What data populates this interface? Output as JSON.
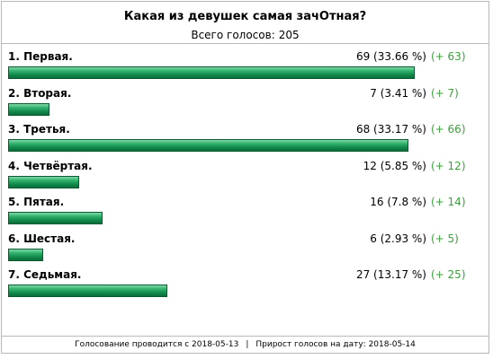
{
  "poll": {
    "title": "Какая из девушек самая зачОтная?",
    "total_label": "Всего голосов:",
    "total_votes": "205",
    "max_votes": 69,
    "options": [
      {
        "label": "1. Первая.",
        "votes": 69,
        "stat": "69 (33.66 %)",
        "delta": "(+ 63)"
      },
      {
        "label": "2. Вторая.",
        "votes": 7,
        "stat": "7 (3.41 %)",
        "delta": "(+ 7)"
      },
      {
        "label": "3. Третья.",
        "votes": 68,
        "stat": "68 (33.17 %)",
        "delta": "(+ 66)"
      },
      {
        "label": "4. Четвёртая.",
        "votes": 12,
        "stat": "12 (5.85 %)",
        "delta": "(+ 12)"
      },
      {
        "label": "5. Пятая.",
        "votes": 16,
        "stat": "16 (7.8 %)",
        "delta": "(+ 14)"
      },
      {
        "label": "6. Шестая.",
        "votes": 6,
        "stat": "6 (2.93 %)",
        "delta": "(+ 5)"
      },
      {
        "label": "7. Седьмая.",
        "votes": 27,
        "stat": "27 (13.17 %)",
        "delta": "(+ 25)"
      }
    ]
  },
  "footer": {
    "started": "Голосование проводится с 2018-05-13",
    "separator": "|",
    "growth": "Прирост голосов на дату: 2018-05-14"
  },
  "colors": {
    "bar": "#11884a",
    "delta": "#3aa03a",
    "border": "#b8b8b8"
  }
}
